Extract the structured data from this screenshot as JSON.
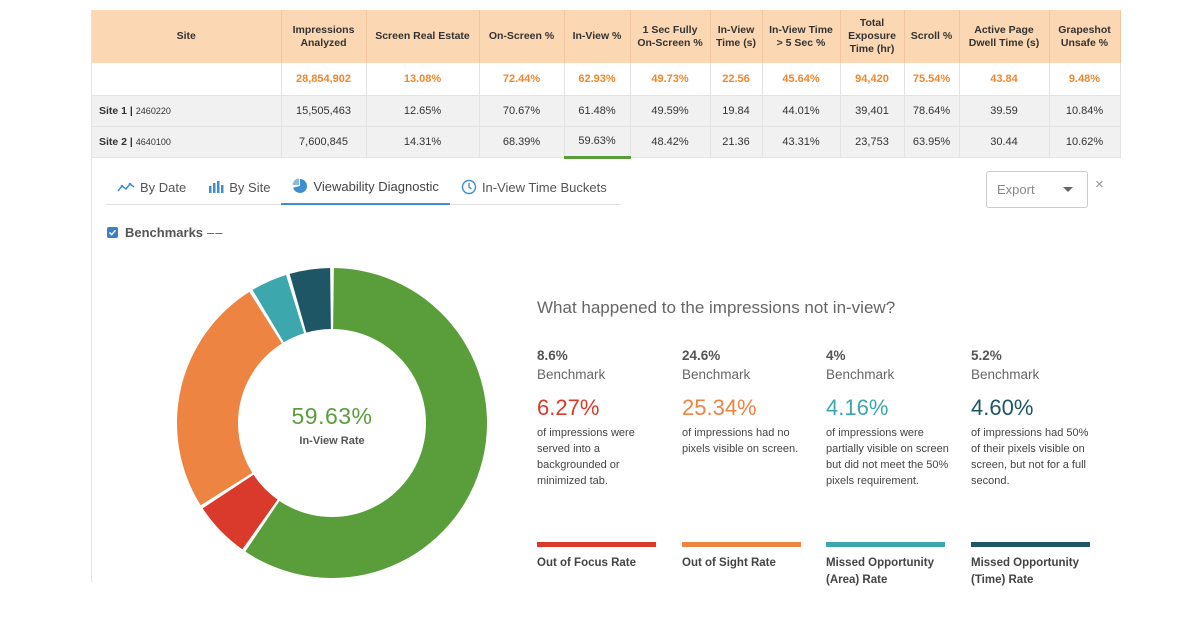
{
  "table": {
    "headers": [
      "Site",
      "Impressions Analyzed",
      "Screen Real Estate",
      "On-Screen %",
      "In-View %",
      "1 Sec Fully On-Screen %",
      "In-View Time (s)",
      "In-View Time > 5 Sec %",
      "Total Exposure Time (hr)",
      "Scroll %",
      "Active Page Dwell Time (s)",
      "Grapeshot Unsafe %"
    ],
    "totals": [
      "",
      "28,854,902",
      "13.08%",
      "72.44%",
      "62.93%",
      "49.73%",
      "22.56",
      "45.64%",
      "94,420",
      "75.54%",
      "43.84",
      "9.48%"
    ],
    "rows": [
      {
        "site": "Site 1",
        "site_id": "2460220",
        "values": [
          "15,505,463",
          "12.65%",
          "70.67%",
          "61.48%",
          "49.59%",
          "19.84",
          "44.01%",
          "39,401",
          "78.64%",
          "39.59",
          "10.84%"
        ]
      },
      {
        "site": "Site 2",
        "site_id": "4640100",
        "values": [
          "7,600,845",
          "14.31%",
          "68.39%",
          "59.63%",
          "48.42%",
          "21.36",
          "43.31%",
          "23,753",
          "63.95%",
          "30.44",
          "10.62%"
        ]
      }
    ],
    "totals_color": "#f0872f",
    "header_bg": "#fbd7b3"
  },
  "tabs": [
    {
      "label": "By Date",
      "icon": "line-chart-icon"
    },
    {
      "label": "By Site",
      "icon": "bar-chart-icon"
    },
    {
      "label": "Viewability Diagnostic",
      "icon": "pie-chart-icon",
      "active": true
    },
    {
      "label": "In-View Time Buckets",
      "icon": "clock-icon"
    }
  ],
  "export": {
    "label": "Export"
  },
  "close_glyph": "×",
  "benchmarks": {
    "label": "Benchmarks",
    "checked": true,
    "legend": "––"
  },
  "donut": {
    "center_value": "59.63%",
    "center_label": "In-View Rate"
  },
  "question": "What happened to the impressions not in-view?",
  "metrics": [
    {
      "benchmark_value": "8.6%",
      "benchmark_label": "Benchmark",
      "rate": "6.27%",
      "description": "of impressions were served into a backgrounded or minimized tab.",
      "name": "Out of Focus Rate",
      "color": "#d93a2b"
    },
    {
      "benchmark_value": "24.6%",
      "benchmark_label": "Benchmark",
      "rate": "25.34%",
      "description": "of impressions had no pixels visible on screen.",
      "name": "Out of Sight Rate",
      "color": "#ee8442"
    },
    {
      "benchmark_value": "4%",
      "benchmark_label": "Benchmark",
      "rate": "4.16%",
      "description": "of impressions were partially visible on screen but did not meet the 50% pixels requirement.",
      "name": "Missed Opportunity (Area) Rate",
      "color": "#3ca7ad"
    },
    {
      "benchmark_value": "5.2%",
      "benchmark_label": "Benchmark",
      "rate": "4.60%",
      "description": "of impressions had 50% of their pixels visible on screen, but not for a full second.",
      "name": "Missed Opportunity (Time) Rate",
      "color": "#1f5665"
    }
  ],
  "chart_data": {
    "type": "pie",
    "variant": "donut",
    "categories": [
      "In-View Rate",
      "Out of Focus Rate",
      "Out of Sight Rate",
      "Missed Opportunity (Area) Rate",
      "Missed Opportunity (Time) Rate"
    ],
    "values": [
      59.63,
      6.27,
      25.34,
      4.16,
      4.6
    ],
    "colors": [
      "#5a9e3c",
      "#d93a2b",
      "#ee8442",
      "#3ca7ad",
      "#1f5665"
    ]
  }
}
